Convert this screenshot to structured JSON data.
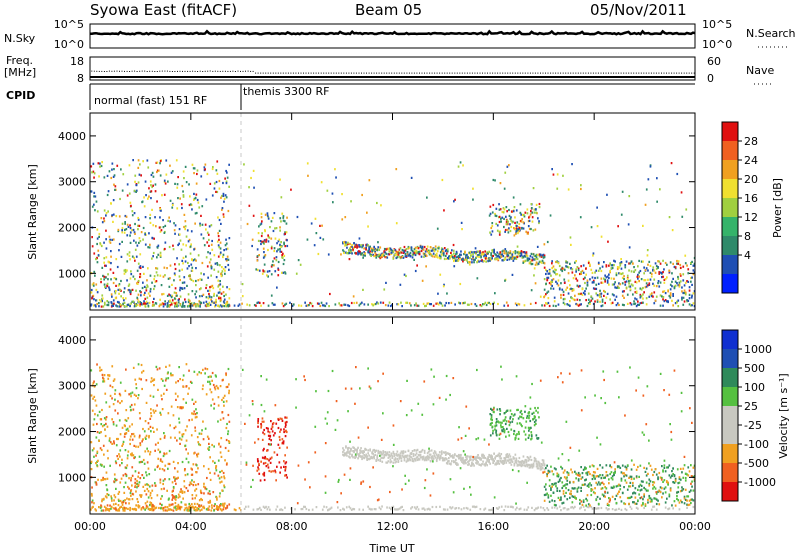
{
  "header": {
    "station": "Syowa East (fitACF)",
    "beam": "Beam 05",
    "date": "05/Nov/2011"
  },
  "left_labels": {
    "nsky": "N.Sky",
    "freq_line1": "Freq.",
    "freq_line2": "[MHz]",
    "cpid": "CPID"
  },
  "right_labels": {
    "nsearch": "N.Search",
    "nave": "Nave"
  },
  "cpid_segments": [
    "normal (fast) 151 RF",
    "themis 3300 RF"
  ],
  "colors": {
    "power_scale": [
      "#0020ff",
      "#1f4fb3",
      "#2f8a6a",
      "#35b36a",
      "#a0d040",
      "#f0e030",
      "#f0a020",
      "#f06020",
      "#e01010"
    ],
    "velocity_scale": [
      "#e01010",
      "#f06020",
      "#f0a020",
      "#c8c8c0",
      "#c8c8c0",
      "#55c040",
      "#2f8a5a",
      "#1f4fb3",
      "#1030d0"
    ]
  },
  "chart_data": [
    {
      "type": "line",
      "name": "N.Sky / N.Search",
      "y_ticks_left": [
        "10^5",
        "10^0"
      ],
      "y_ticks_right": [
        "10^5",
        "10^0"
      ]
    },
    {
      "type": "line",
      "name": "Freq / Nave",
      "y_ticks_left": [
        "18",
        "8"
      ],
      "y_ticks_right": [
        "60",
        "0"
      ],
      "freq_early_mhz": 11.8,
      "freq_late_mhz": 11.0,
      "nave_constant": 2
    },
    {
      "type": "heatmap",
      "parameter": "power",
      "ylabel": "Slant Range [km]",
      "colorbar_label": "Power [dB]",
      "colorbar_ticks": [
        "4",
        "8",
        "12",
        "16",
        "20",
        "24",
        "28"
      ],
      "yticks": [
        "1000",
        "2000",
        "3000",
        "4000"
      ],
      "ylim": [
        200,
        4500
      ],
      "xlim_hours": [
        0,
        24
      ]
    },
    {
      "type": "heatmap",
      "parameter": "velocity",
      "ylabel": "Slant Range [km]",
      "colorbar_label": "Velocity [m s⁻¹]",
      "colorbar_ticks": [
        "1000",
        "500",
        "100",
        "25",
        "-25",
        "-100",
        "-500",
        "-1000"
      ],
      "yticks": [
        "1000",
        "2000",
        "3000",
        "4000"
      ],
      "ylim": [
        200,
        4500
      ],
      "xlim_hours": [
        0,
        24
      ],
      "xticks": [
        "00:00",
        "04:00",
        "08:00",
        "12:00",
        "16:00",
        "20:00",
        "00:00"
      ],
      "xlabel": "Time UT"
    }
  ]
}
